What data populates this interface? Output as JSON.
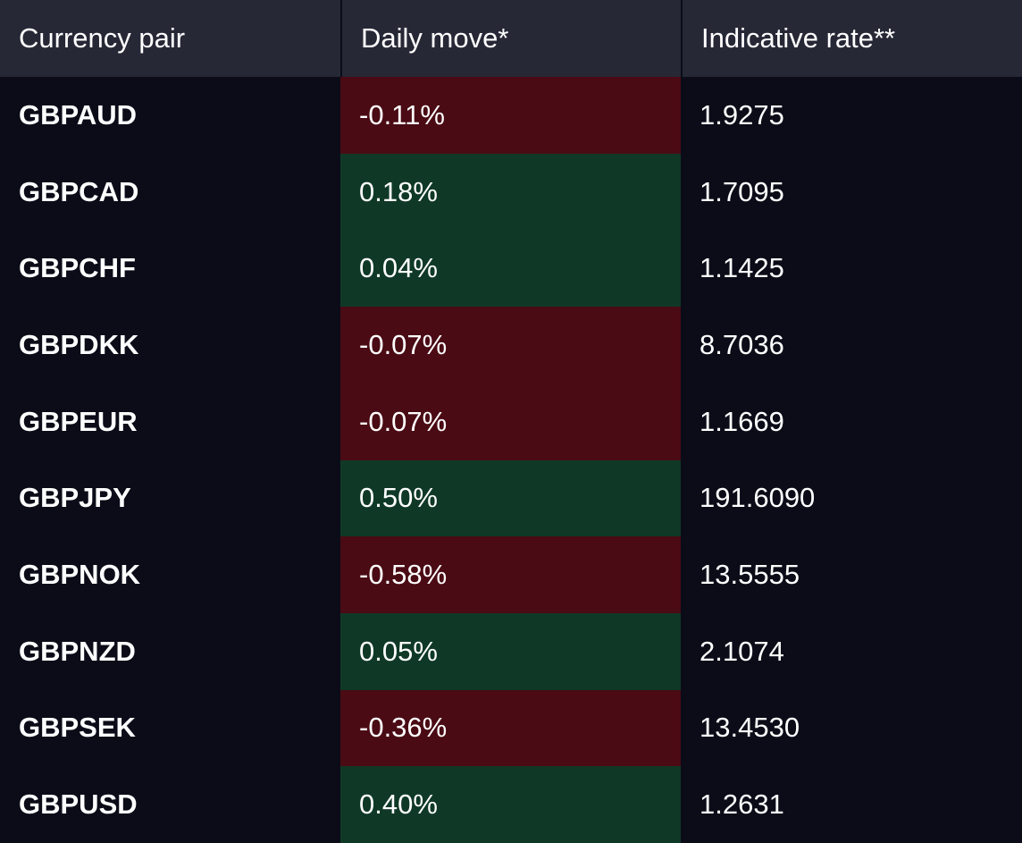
{
  "table": {
    "headers": {
      "pair": "Currency pair",
      "move": "Daily move*",
      "rate": "Indicative rate**"
    },
    "colors": {
      "negative": "#4a0b14",
      "positive": "#0f3926"
    },
    "rows": [
      {
        "pair": "GBPAUD",
        "move": "-0.11%",
        "direction": "negative",
        "rate": "1.9275"
      },
      {
        "pair": "GBPCAD",
        "move": "0.18%",
        "direction": "positive",
        "rate": "1.7095"
      },
      {
        "pair": "GBPCHF",
        "move": "0.04%",
        "direction": "positive",
        "rate": "1.1425"
      },
      {
        "pair": "GBPDKK",
        "move": "-0.07%",
        "direction": "negative",
        "rate": "8.7036"
      },
      {
        "pair": "GBPEUR",
        "move": "-0.07%",
        "direction": "negative",
        "rate": "1.1669"
      },
      {
        "pair": "GBPJPY",
        "move": "0.50%",
        "direction": "positive",
        "rate": "191.6090"
      },
      {
        "pair": "GBPNOK",
        "move": "-0.58%",
        "direction": "negative",
        "rate": "13.5555"
      },
      {
        "pair": "GBPNZD",
        "move": "0.05%",
        "direction": "positive",
        "rate": "2.1074"
      },
      {
        "pair": "GBPSEK",
        "move": "-0.36%",
        "direction": "negative",
        "rate": "13.4530"
      },
      {
        "pair": "GBPUSD",
        "move": "0.40%",
        "direction": "positive",
        "rate": "1.2631"
      }
    ]
  }
}
